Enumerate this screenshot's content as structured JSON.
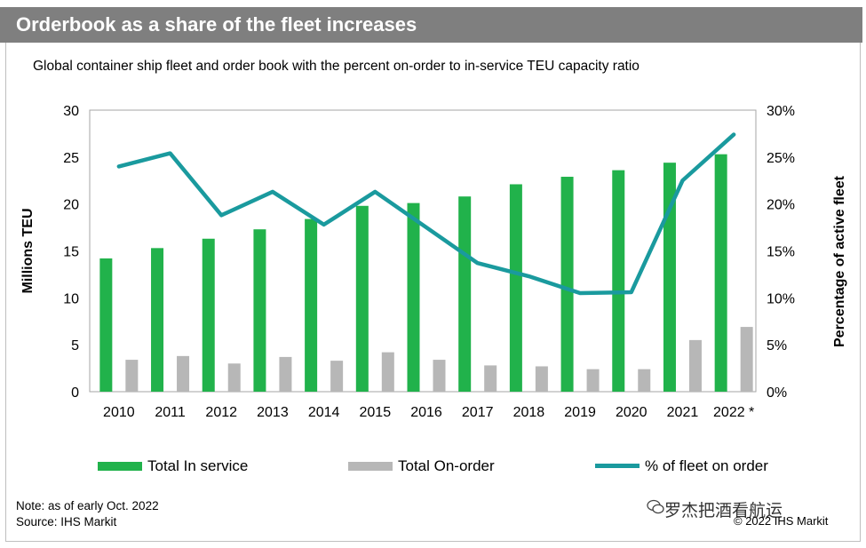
{
  "header": {
    "title": "Orderbook as a share of the fleet increases",
    "subtitle": "Global container ship fleet and order book with the percent on-order to in-service TEU capacity ratio"
  },
  "footer": {
    "note": "Note: as of early Oct. 2022",
    "source": "Source: IHS Markit",
    "copyright": "© 2022 IHS Markit",
    "watermark": "罗杰把酒看航运"
  },
  "colors": {
    "in_service": "#21b24b",
    "on_order": "#b7b7b7",
    "pct_line": "#1a9a9e",
    "title_bar": "#7f7f7f"
  },
  "chart_data": {
    "type": "bar",
    "categories": [
      "2010",
      "2011",
      "2012",
      "2013",
      "2014",
      "2015",
      "2016",
      "2017",
      "2018",
      "2019",
      "2020",
      "2021",
      "2022 *"
    ],
    "series": [
      {
        "name": "Total In service",
        "type": "bar",
        "axis": "left",
        "values": [
          14.2,
          15.3,
          16.3,
          17.3,
          18.4,
          19.8,
          20.1,
          20.8,
          22.1,
          22.9,
          23.6,
          24.4,
          25.3
        ]
      },
      {
        "name": "Total On-order",
        "type": "bar",
        "axis": "left",
        "values": [
          3.4,
          3.8,
          3.0,
          3.7,
          3.3,
          4.2,
          3.4,
          2.8,
          2.7,
          2.4,
          2.4,
          5.5,
          6.9
        ]
      },
      {
        "name": "% of fleet on order",
        "type": "line",
        "axis": "right",
        "values": [
          24.0,
          25.4,
          18.8,
          21.3,
          17.8,
          21.3,
          17.5,
          13.7,
          12.3,
          10.5,
          10.6,
          22.5,
          27.4
        ]
      }
    ],
    "ylabel": "Millions TEU",
    "ylim": [
      0,
      30
    ],
    "yticks": [
      "0",
      "5",
      "10",
      "15",
      "20",
      "25",
      "30"
    ],
    "y2label": "Percentage of active fleet",
    "y2lim": [
      0,
      30
    ],
    "y2ticks": [
      "0%",
      "5%",
      "10%",
      "15%",
      "20%",
      "25%",
      "30%"
    ],
    "grid": false,
    "legend_placement": "bottom"
  }
}
